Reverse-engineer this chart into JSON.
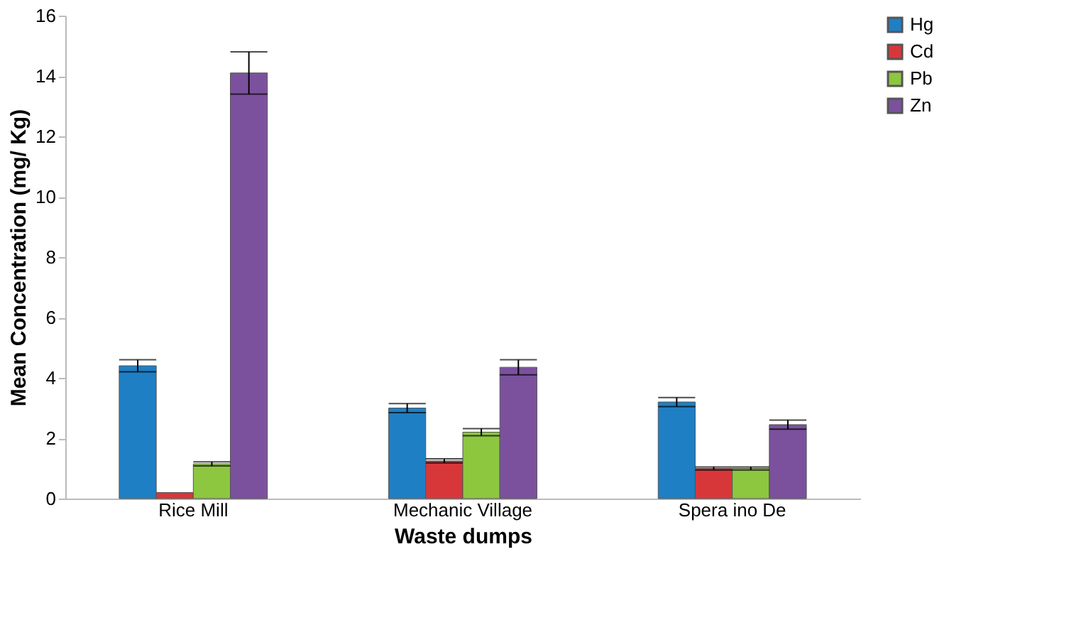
{
  "chart_data": {
    "type": "bar",
    "xlabel": "Waste dumps",
    "ylabel": "Mean Concentration (mg/ Kg)",
    "categories": [
      "Rice Mill",
      "Mechanic Village",
      "Spera ino De"
    ],
    "series": [
      {
        "name": "Hg",
        "color": "#1f7fc4",
        "values": [
          4.4,
          3.0,
          3.2
        ],
        "errors": [
          0.2,
          0.15,
          0.15
        ]
      },
      {
        "name": "Cd",
        "color": "#d8373a",
        "values": [
          0.2,
          1.25,
          1.0
        ],
        "errors": [
          null,
          0.07,
          0.05
        ]
      },
      {
        "name": "Pb",
        "color": "#8dc63f",
        "values": [
          1.15,
          2.2,
          1.0
        ],
        "errors": [
          0.07,
          0.12,
          0.05
        ]
      },
      {
        "name": "Zn",
        "color": "#7b519d",
        "values": [
          14.1,
          4.35,
          2.45
        ],
        "errors": [
          0.7,
          0.25,
          0.15
        ]
      }
    ],
    "ylim": [
      0,
      16
    ],
    "yticks": [
      0,
      2,
      4,
      6,
      8,
      10,
      12,
      14,
      16
    ],
    "grid": false,
    "legend": "right"
  }
}
